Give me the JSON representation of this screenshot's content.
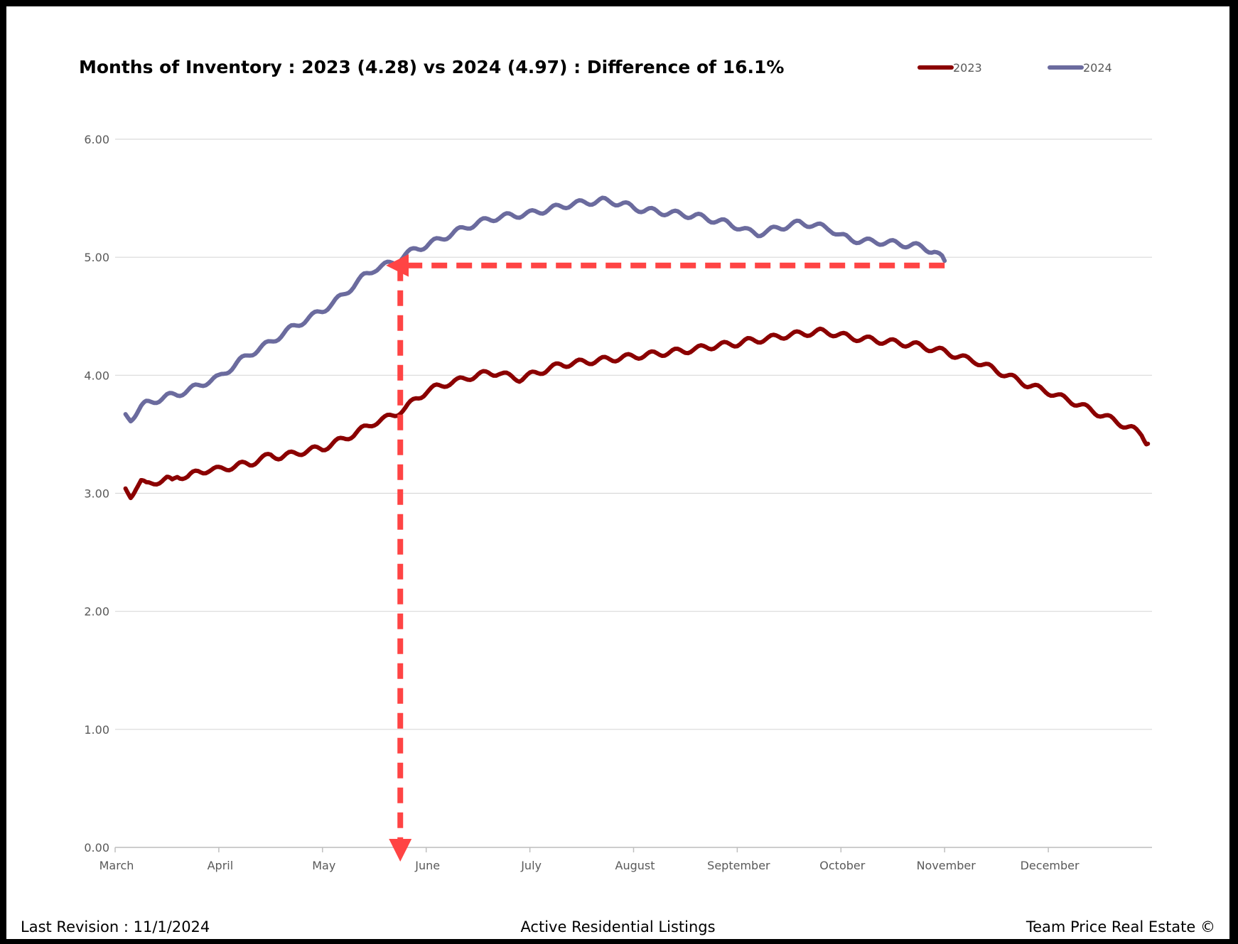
{
  "chart_data": {
    "type": "line",
    "title": "Months of Inventory : 2023 (4.28) vs 2024 (4.97) : Difference of 16.1%",
    "xlabel": "",
    "ylabel": "",
    "ylim": [
      0,
      6
    ],
    "yticks": [
      "0.00",
      "1.00",
      "2.00",
      "3.00",
      "4.00",
      "5.00",
      "6.00"
    ],
    "xlim": [
      0,
      10
    ],
    "categories": [
      "March",
      "April",
      "May",
      "June",
      "July",
      "August",
      "September",
      "October",
      "November",
      "December"
    ],
    "legend_position": "top-right",
    "series": [
      {
        "name": "2023",
        "color": "#8b0000",
        "x": [
          0.1,
          0.15,
          0.2,
          0.25,
          0.3,
          0.4,
          0.5,
          0.55,
          0.6,
          0.7,
          0.8,
          0.9,
          1.0,
          1.1,
          1.2,
          1.3,
          1.4,
          1.5,
          1.6,
          1.7,
          1.8,
          1.9,
          2.0,
          2.1,
          2.2,
          2.3,
          2.4,
          2.5,
          2.6,
          2.7,
          2.8,
          2.9,
          3.0,
          3.1,
          3.2,
          3.3,
          3.4,
          3.5,
          3.6,
          3.7,
          3.8,
          3.9,
          4.0,
          4.1,
          4.2,
          4.3,
          4.4,
          4.5,
          4.6,
          4.7,
          4.8,
          4.9,
          5.0,
          5.1,
          5.2,
          5.3,
          5.4,
          5.5,
          5.6,
          5.7,
          5.8,
          5.9,
          6.0,
          6.1,
          6.2,
          6.3,
          6.4,
          6.5,
          6.6,
          6.7,
          6.8,
          6.9,
          7.0,
          7.1,
          7.2,
          7.3,
          7.4,
          7.5,
          7.6,
          7.7,
          7.8,
          7.9,
          8.0,
          8.1,
          8.2,
          8.3,
          8.4,
          8.5,
          8.6,
          8.7,
          8.8,
          8.9,
          9.0,
          9.1,
          9.2,
          9.3,
          9.4,
          9.5,
          9.6,
          9.7,
          9.8,
          9.9,
          9.96
        ],
        "y": [
          3.03,
          2.98,
          3.05,
          3.1,
          3.07,
          3.1,
          3.12,
          3.1,
          3.15,
          3.14,
          3.18,
          3.2,
          3.2,
          3.22,
          3.24,
          3.25,
          3.29,
          3.32,
          3.31,
          3.33,
          3.35,
          3.37,
          3.38,
          3.42,
          3.46,
          3.5,
          3.55,
          3.6,
          3.63,
          3.67,
          3.72,
          3.8,
          3.86,
          3.9,
          3.93,
          3.95,
          3.98,
          4.0,
          4.02,
          4.02,
          3.99,
          3.97,
          4.0,
          4.03,
          4.06,
          4.09,
          4.1,
          4.11,
          4.12,
          4.13,
          4.14,
          4.15,
          4.16,
          4.17,
          4.18,
          4.19,
          4.2,
          4.21,
          4.22,
          4.24,
          4.25,
          4.26,
          4.27,
          4.29,
          4.3,
          4.31,
          4.33,
          4.34,
          4.35,
          4.36,
          4.37,
          4.36,
          4.34,
          4.32,
          4.31,
          4.3,
          4.29,
          4.28,
          4.27,
          4.26,
          4.24,
          4.22,
          4.2,
          4.17,
          4.14,
          4.12,
          4.08,
          4.04,
          4.0,
          3.96,
          3.92,
          3.89,
          3.86,
          3.82,
          3.79,
          3.75,
          3.71,
          3.67,
          3.63,
          3.59,
          3.55,
          3.5,
          3.42
        ]
      },
      {
        "name": "2024",
        "color": "#6b6b9e",
        "x": [
          0.1,
          0.15,
          0.2,
          0.25,
          0.3,
          0.4,
          0.5,
          0.6,
          0.7,
          0.8,
          0.9,
          1.0,
          1.1,
          1.2,
          1.3,
          1.4,
          1.5,
          1.6,
          1.7,
          1.8,
          1.9,
          2.0,
          2.1,
          2.2,
          2.3,
          2.4,
          2.5,
          2.6,
          2.7,
          2.8,
          2.9,
          3.0,
          3.1,
          3.2,
          3.3,
          3.4,
          3.5,
          3.6,
          3.7,
          3.8,
          3.9,
          4.0,
          4.1,
          4.2,
          4.3,
          4.4,
          4.5,
          4.6,
          4.7,
          4.8,
          4.9,
          5.0,
          5.1,
          5.2,
          5.3,
          5.4,
          5.5,
          5.6,
          5.7,
          5.8,
          5.9,
          6.0,
          6.1,
          6.2,
          6.3,
          6.4,
          6.5,
          6.6,
          6.7,
          6.8,
          6.9,
          7.0,
          7.1,
          7.2,
          7.3,
          7.4,
          7.5,
          7.6,
          7.7,
          7.8,
          7.9,
          8.0
        ],
        "y": [
          3.66,
          3.63,
          3.68,
          3.73,
          3.76,
          3.79,
          3.82,
          3.84,
          3.87,
          3.91,
          3.95,
          3.98,
          4.05,
          4.12,
          4.18,
          4.23,
          4.28,
          4.34,
          4.4,
          4.45,
          4.5,
          4.55,
          4.61,
          4.68,
          4.76,
          4.84,
          4.9,
          4.93,
          4.96,
          5.02,
          5.07,
          5.1,
          5.14,
          5.18,
          5.22,
          5.26,
          5.29,
          5.32,
          5.34,
          5.35,
          5.36,
          5.37,
          5.39,
          5.41,
          5.43,
          5.45,
          5.46,
          5.47,
          5.48,
          5.47,
          5.45,
          5.42,
          5.4,
          5.39,
          5.38,
          5.37,
          5.36,
          5.35,
          5.33,
          5.31,
          5.29,
          5.26,
          5.22,
          5.2,
          5.22,
          5.25,
          5.27,
          5.29,
          5.28,
          5.26,
          5.24,
          5.18,
          5.15,
          5.14,
          5.13,
          5.13,
          5.12,
          5.11,
          5.1,
          5.08,
          5.05,
          4.97
        ]
      }
    ],
    "annotations": [
      {
        "type": "dashed-arrow",
        "color": "#ff4444",
        "from": [
          8.0,
          4.93
        ],
        "to": [
          2.75,
          4.93
        ]
      },
      {
        "type": "dashed-arrow",
        "color": "#ff4444",
        "from": [
          2.75,
          4.93
        ],
        "to": [
          2.75,
          0.0
        ]
      }
    ]
  },
  "footer": {
    "left": "Last Revision : 11/1/2024",
    "center": "Active Residential Listings",
    "right": "Team Price Real Estate ©"
  }
}
